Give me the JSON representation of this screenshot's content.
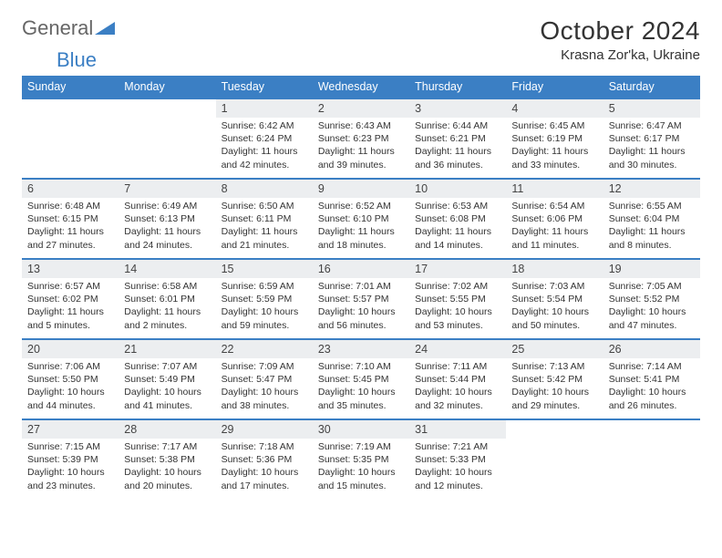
{
  "logo": {
    "word1": "General",
    "word2": "Blue"
  },
  "title": "October 2024",
  "location": "Krasna Zor'ka, Ukraine",
  "colors": {
    "header_bg": "#3b7fc4",
    "header_text": "#ffffff",
    "daynum_bg": "#eceef0",
    "border": "#3b7fc4",
    "page_bg": "#ffffff",
    "body_text": "#333333"
  },
  "fonts": {
    "title_size": 28,
    "location_size": 15,
    "header_size": 12.5,
    "cell_size": 10.5
  },
  "weekdays": [
    "Sunday",
    "Monday",
    "Tuesday",
    "Wednesday",
    "Thursday",
    "Friday",
    "Saturday"
  ],
  "weeks": [
    [
      {
        "n": "",
        "empty": true
      },
      {
        "n": "",
        "empty": true
      },
      {
        "n": "1",
        "sr": "6:42 AM",
        "ss": "6:24 PM",
        "dl": "11 hours and 42 minutes."
      },
      {
        "n": "2",
        "sr": "6:43 AM",
        "ss": "6:23 PM",
        "dl": "11 hours and 39 minutes."
      },
      {
        "n": "3",
        "sr": "6:44 AM",
        "ss": "6:21 PM",
        "dl": "11 hours and 36 minutes."
      },
      {
        "n": "4",
        "sr": "6:45 AM",
        "ss": "6:19 PM",
        "dl": "11 hours and 33 minutes."
      },
      {
        "n": "5",
        "sr": "6:47 AM",
        "ss": "6:17 PM",
        "dl": "11 hours and 30 minutes."
      }
    ],
    [
      {
        "n": "6",
        "sr": "6:48 AM",
        "ss": "6:15 PM",
        "dl": "11 hours and 27 minutes."
      },
      {
        "n": "7",
        "sr": "6:49 AM",
        "ss": "6:13 PM",
        "dl": "11 hours and 24 minutes."
      },
      {
        "n": "8",
        "sr": "6:50 AM",
        "ss": "6:11 PM",
        "dl": "11 hours and 21 minutes."
      },
      {
        "n": "9",
        "sr": "6:52 AM",
        "ss": "6:10 PM",
        "dl": "11 hours and 18 minutes."
      },
      {
        "n": "10",
        "sr": "6:53 AM",
        "ss": "6:08 PM",
        "dl": "11 hours and 14 minutes."
      },
      {
        "n": "11",
        "sr": "6:54 AM",
        "ss": "6:06 PM",
        "dl": "11 hours and 11 minutes."
      },
      {
        "n": "12",
        "sr": "6:55 AM",
        "ss": "6:04 PM",
        "dl": "11 hours and 8 minutes."
      }
    ],
    [
      {
        "n": "13",
        "sr": "6:57 AM",
        "ss": "6:02 PM",
        "dl": "11 hours and 5 minutes."
      },
      {
        "n": "14",
        "sr": "6:58 AM",
        "ss": "6:01 PM",
        "dl": "11 hours and 2 minutes."
      },
      {
        "n": "15",
        "sr": "6:59 AM",
        "ss": "5:59 PM",
        "dl": "10 hours and 59 minutes."
      },
      {
        "n": "16",
        "sr": "7:01 AM",
        "ss": "5:57 PM",
        "dl": "10 hours and 56 minutes."
      },
      {
        "n": "17",
        "sr": "7:02 AM",
        "ss": "5:55 PM",
        "dl": "10 hours and 53 minutes."
      },
      {
        "n": "18",
        "sr": "7:03 AM",
        "ss": "5:54 PM",
        "dl": "10 hours and 50 minutes."
      },
      {
        "n": "19",
        "sr": "7:05 AM",
        "ss": "5:52 PM",
        "dl": "10 hours and 47 minutes."
      }
    ],
    [
      {
        "n": "20",
        "sr": "7:06 AM",
        "ss": "5:50 PM",
        "dl": "10 hours and 44 minutes."
      },
      {
        "n": "21",
        "sr": "7:07 AM",
        "ss": "5:49 PM",
        "dl": "10 hours and 41 minutes."
      },
      {
        "n": "22",
        "sr": "7:09 AM",
        "ss": "5:47 PM",
        "dl": "10 hours and 38 minutes."
      },
      {
        "n": "23",
        "sr": "7:10 AM",
        "ss": "5:45 PM",
        "dl": "10 hours and 35 minutes."
      },
      {
        "n": "24",
        "sr": "7:11 AM",
        "ss": "5:44 PM",
        "dl": "10 hours and 32 minutes."
      },
      {
        "n": "25",
        "sr": "7:13 AM",
        "ss": "5:42 PM",
        "dl": "10 hours and 29 minutes."
      },
      {
        "n": "26",
        "sr": "7:14 AM",
        "ss": "5:41 PM",
        "dl": "10 hours and 26 minutes."
      }
    ],
    [
      {
        "n": "27",
        "sr": "7:15 AM",
        "ss": "5:39 PM",
        "dl": "10 hours and 23 minutes."
      },
      {
        "n": "28",
        "sr": "7:17 AM",
        "ss": "5:38 PM",
        "dl": "10 hours and 20 minutes."
      },
      {
        "n": "29",
        "sr": "7:18 AM",
        "ss": "5:36 PM",
        "dl": "10 hours and 17 minutes."
      },
      {
        "n": "30",
        "sr": "7:19 AM",
        "ss": "5:35 PM",
        "dl": "10 hours and 15 minutes."
      },
      {
        "n": "31",
        "sr": "7:21 AM",
        "ss": "5:33 PM",
        "dl": "10 hours and 12 minutes."
      },
      {
        "n": "",
        "empty": true
      },
      {
        "n": "",
        "empty": true
      }
    ]
  ],
  "labels": {
    "sunrise": "Sunrise:",
    "sunset": "Sunset:",
    "daylight": "Daylight:"
  }
}
